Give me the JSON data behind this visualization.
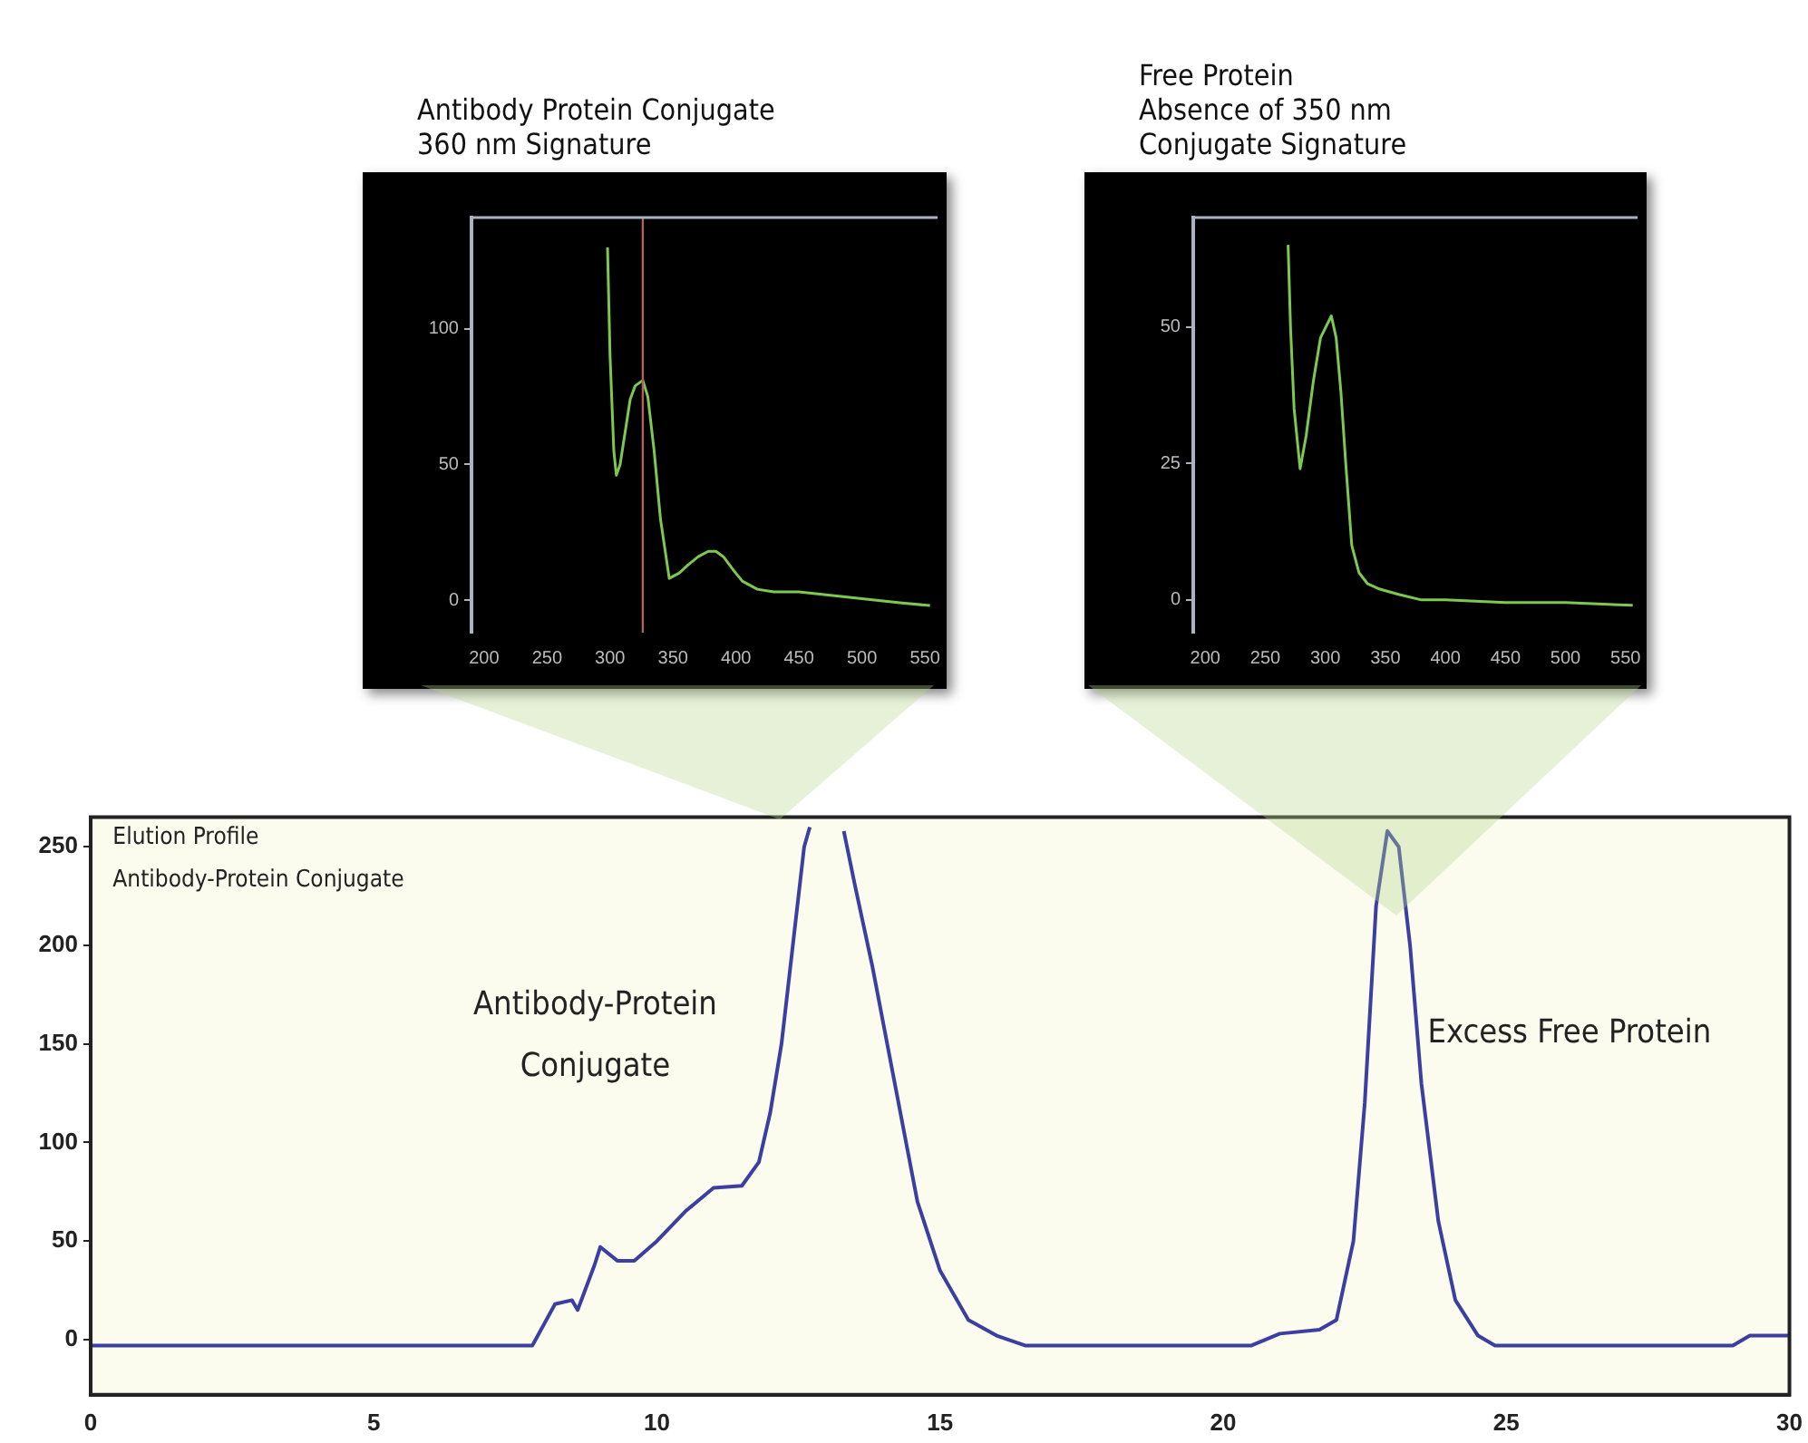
{
  "chart_data": [
    {
      "type": "line",
      "annotations": [
        "Elution Profile",
        "Antibody-Protein Conjugate",
        "Antibody-Protein\nConjugate",
        "Excess Free Protein"
      ],
      "x": [
        0,
        2,
        4,
        6,
        7.8,
        8.2,
        8.5,
        8.6,
        8.9,
        9.0,
        9.3,
        9.6,
        10,
        10.5,
        11,
        11.5,
        11.8,
        12.0,
        12.2,
        12.4,
        12.6,
        12.7,
        13.0,
        13.3,
        13.5,
        13.8,
        14.2,
        14.6,
        15.0,
        15.5,
        16,
        16.5,
        18,
        20.5,
        21,
        21.7,
        22.0,
        22.3,
        22.5,
        22.7,
        22.9,
        23.1,
        23.3,
        23.5,
        23.8,
        24.1,
        24.5,
        24.8,
        27,
        29,
        29.3,
        30
      ],
      "values": [
        -3,
        -3,
        -3,
        -3,
        -3,
        18,
        20,
        15,
        38,
        47,
        40,
        40,
        50,
        65,
        77,
        78,
        90,
        115,
        150,
        200,
        250,
        260,
        null,
        258,
        230,
        190,
        130,
        70,
        35,
        10,
        2,
        -3,
        -3,
        -3,
        3,
        5,
        10,
        50,
        120,
        220,
        258,
        250,
        200,
        130,
        60,
        20,
        2,
        -3,
        -3,
        -3,
        2,
        2
      ],
      "color": "#3b3fa0",
      "xlim": [
        0,
        30
      ],
      "ylim": [
        -28,
        265
      ],
      "xticks": [
        0,
        5,
        10,
        15,
        20,
        25,
        30
      ],
      "yticks": [
        0,
        50,
        100,
        150,
        200,
        250
      ],
      "grid": false
    },
    {
      "type": "line",
      "title": "Antibody Protein Conjugate\n360 nm Signature",
      "x": [
        298,
        300,
        303,
        305,
        308,
        312,
        316,
        320,
        326,
        330,
        335,
        340,
        347,
        355,
        362,
        370,
        378,
        384,
        390,
        398,
        405,
        417,
        430,
        450,
        470,
        490,
        510,
        530,
        554
      ],
      "values": [
        130,
        90,
        55,
        46,
        50,
        62,
        74,
        79,
        81,
        75,
        55,
        30,
        8,
        10,
        13,
        16,
        18,
        18,
        16,
        11,
        7,
        4,
        3,
        3,
        2,
        1,
        0,
        -1,
        -2
      ],
      "color": "#7ec850",
      "xlim": [
        190,
        560
      ],
      "ylim": [
        -12,
        141
      ],
      "xticks": [
        200,
        250,
        300,
        350,
        400,
        450,
        500,
        550
      ],
      "yticks": [
        0,
        50,
        100
      ],
      "grid": false,
      "ref_lines": [
        {
          "axis": "x",
          "value": 326,
          "color": "#b06060"
        }
      ]
    },
    {
      "type": "line",
      "title": "Free Protein\nAbsence of 350 nm\nConjugate Signature",
      "x": [
        269,
        271,
        274,
        279,
        284,
        290,
        296,
        305,
        309,
        313,
        317,
        322,
        328,
        335,
        345,
        361,
        380,
        400,
        450,
        500,
        556
      ],
      "values": [
        65,
        50,
        35,
        24,
        30,
        40,
        48,
        52,
        48,
        38,
        25,
        10,
        5,
        3,
        2,
        1,
        0,
        0,
        -0.5,
        -0.5,
        -1
      ],
      "color": "#7ec850",
      "xlim": [
        190,
        560
      ],
      "ylim": [
        -6,
        70
      ],
      "xticks": [
        200,
        250,
        300,
        350,
        400,
        450,
        500,
        550
      ],
      "yticks": [
        0,
        25,
        50
      ],
      "grid": false
    }
  ]
}
